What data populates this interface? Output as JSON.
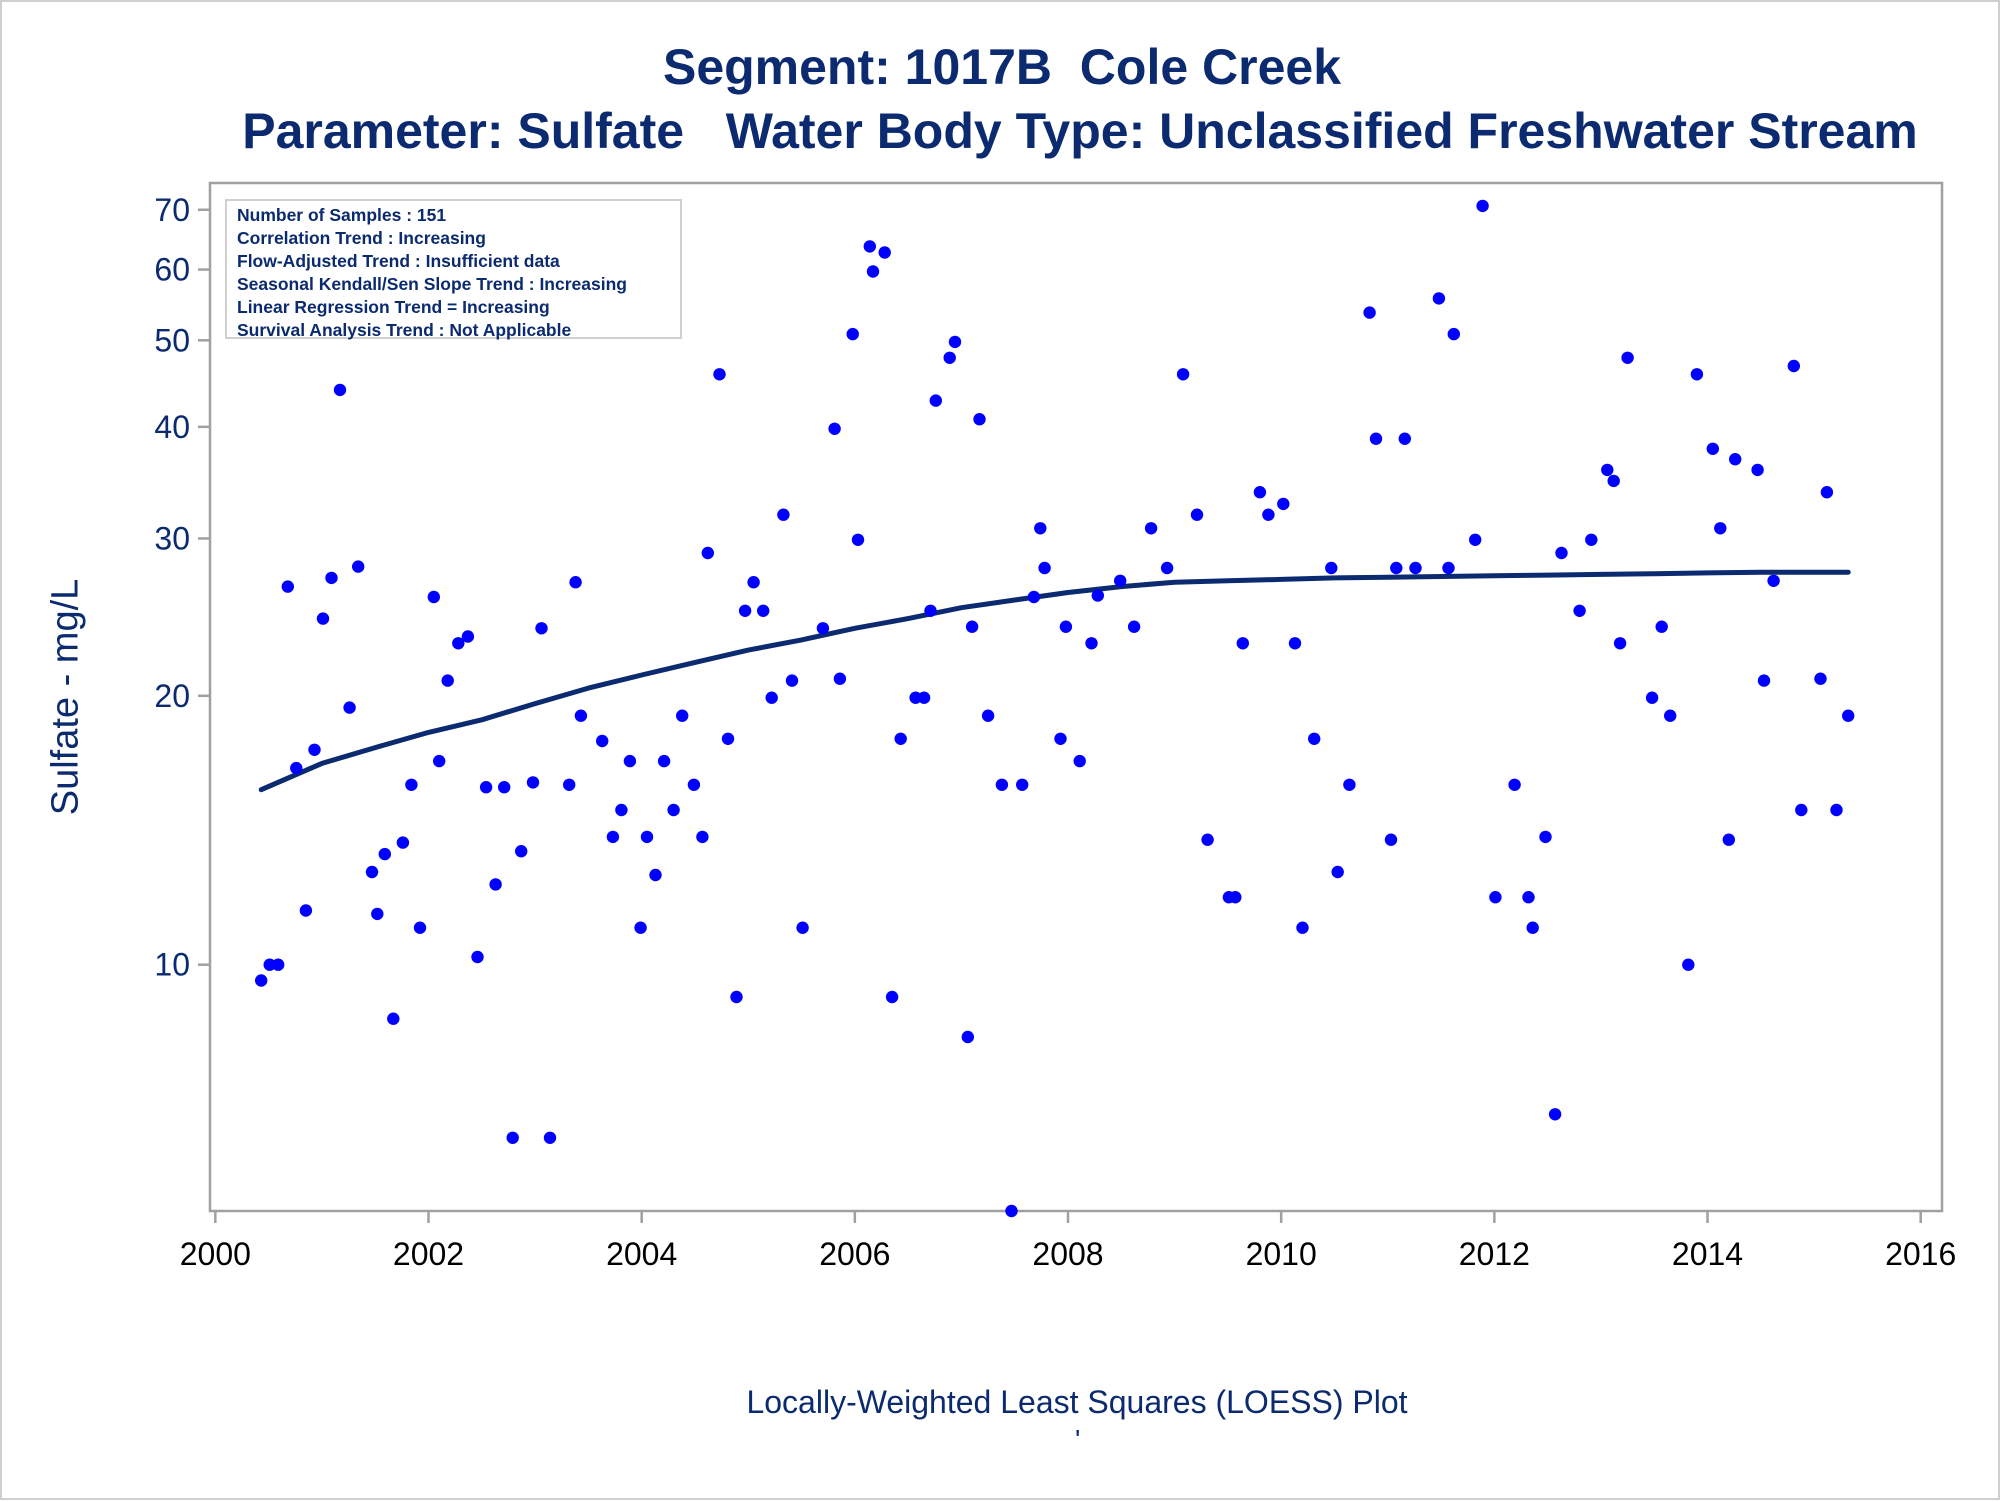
{
  "titles": {
    "line1": "Segment: 1017B  Cole Creek",
    "line2": "Parameter: Sulfate   Water Body Type: Unclassified Freshwater Stream"
  },
  "footnote": "Locally-Weighted Least Squares (LOESS) Plot",
  "footmark": "'",
  "stats": [
    "Number of Samples : 151",
    "Correlation Trend : Increasing",
    "Flow-Adjusted Trend : Insufficient data",
    "Seasonal Kendall/Sen Slope Trend : Increasing",
    "Linear Regression Trend = Increasing",
    "Survival Analysis Trend : Not Applicable"
  ],
  "colors": {
    "text": "#0b2a6f",
    "points": "#0000ff",
    "loess": "#0b2a6f",
    "frame": "#a0a0a0"
  },
  "chart_data": {
    "type": "scatter",
    "title": "Segment: 1017B  Cole Creek",
    "subtitle": "Parameter: Sulfate   Water Body Type: Unclassified Freshwater Stream",
    "xlabel": "",
    "ylabel": "Sulfate - mg/L",
    "yscale": "log",
    "xlim": [
      1999.95,
      2016.2
    ],
    "ylim": [
      5.3,
      75
    ],
    "xticks": [
      2000,
      2002,
      2004,
      2006,
      2008,
      2010,
      2012,
      2014,
      2016
    ],
    "yticks": [
      10,
      20,
      30,
      40,
      50,
      60,
      70
    ],
    "grid": false,
    "points": [
      [
        2000.43,
        9.6
      ],
      [
        2000.51,
        10.0
      ],
      [
        2000.59,
        10.0
      ],
      [
        2000.68,
        26.5
      ],
      [
        2000.76,
        16.6
      ],
      [
        2000.85,
        11.5
      ],
      [
        2000.93,
        17.4
      ],
      [
        2001.01,
        24.4
      ],
      [
        2001.09,
        27.1
      ],
      [
        2001.17,
        44.0
      ],
      [
        2001.26,
        19.4
      ],
      [
        2001.34,
        27.9
      ],
      [
        2001.47,
        12.7
      ],
      [
        2001.52,
        11.4
      ],
      [
        2001.59,
        13.3
      ],
      [
        2001.67,
        8.7
      ],
      [
        2001.76,
        13.7
      ],
      [
        2001.84,
        15.9
      ],
      [
        2001.92,
        11.0
      ],
      [
        2002.05,
        25.8
      ],
      [
        2002.1,
        16.9
      ],
      [
        2002.18,
        20.8
      ],
      [
        2002.28,
        22.9
      ],
      [
        2002.37,
        23.3
      ],
      [
        2002.46,
        10.2
      ],
      [
        2002.54,
        15.8
      ],
      [
        2002.63,
        12.3
      ],
      [
        2002.71,
        15.8
      ],
      [
        2002.79,
        6.4
      ],
      [
        2002.87,
        13.4
      ],
      [
        2002.98,
        16.0
      ],
      [
        2003.06,
        23.8
      ],
      [
        2003.14,
        6.4
      ],
      [
        2003.32,
        15.9
      ],
      [
        2003.38,
        26.8
      ],
      [
        2003.43,
        19.0
      ],
      [
        2003.63,
        17.8
      ],
      [
        2003.73,
        13.9
      ],
      [
        2003.81,
        14.9
      ],
      [
        2003.89,
        16.9
      ],
      [
        2003.99,
        11.0
      ],
      [
        2004.05,
        13.9
      ],
      [
        2004.13,
        12.6
      ],
      [
        2004.21,
        16.9
      ],
      [
        2004.3,
        14.9
      ],
      [
        2004.38,
        19.0
      ],
      [
        2004.49,
        15.9
      ],
      [
        2004.57,
        13.9
      ],
      [
        2004.62,
        28.9
      ],
      [
        2004.73,
        45.8
      ],
      [
        2004.81,
        17.9
      ],
      [
        2004.89,
        9.2
      ],
      [
        2004.97,
        24.9
      ],
      [
        2005.05,
        26.8
      ],
      [
        2005.14,
        24.9
      ],
      [
        2005.22,
        19.9
      ],
      [
        2005.33,
        31.9
      ],
      [
        2005.41,
        20.8
      ],
      [
        2005.51,
        11.0
      ],
      [
        2005.7,
        23.8
      ],
      [
        2005.81,
        39.8
      ],
      [
        2005.86,
        20.9
      ],
      [
        2005.98,
        50.8
      ],
      [
        2006.03,
        29.9
      ],
      [
        2006.14,
        63.7
      ],
      [
        2006.17,
        59.7
      ],
      [
        2006.28,
        62.7
      ],
      [
        2006.35,
        9.2
      ],
      [
        2006.43,
        17.9
      ],
      [
        2006.57,
        19.9
      ],
      [
        2006.65,
        19.9
      ],
      [
        2006.71,
        24.9
      ],
      [
        2006.76,
        42.8
      ],
      [
        2006.89,
        47.8
      ],
      [
        2006.94,
        49.8
      ],
      [
        2007.06,
        8.3
      ],
      [
        2007.1,
        23.9
      ],
      [
        2007.17,
        40.8
      ],
      [
        2007.25,
        19.0
      ],
      [
        2007.38,
        15.9
      ],
      [
        2007.47,
        5.3
      ],
      [
        2007.57,
        15.9
      ],
      [
        2007.68,
        25.8
      ],
      [
        2007.74,
        30.8
      ],
      [
        2007.78,
        27.8
      ],
      [
        2007.93,
        17.9
      ],
      [
        2007.98,
        23.9
      ],
      [
        2008.11,
        16.9
      ],
      [
        2008.22,
        22.9
      ],
      [
        2008.28,
        25.9
      ],
      [
        2008.49,
        26.9
      ],
      [
        2008.62,
        23.9
      ],
      [
        2008.78,
        30.8
      ],
      [
        2008.93,
        27.8
      ],
      [
        2009.08,
        45.8
      ],
      [
        2009.21,
        31.9
      ],
      [
        2009.31,
        13.8
      ],
      [
        2009.51,
        11.9
      ],
      [
        2009.57,
        11.9
      ],
      [
        2009.64,
        22.9
      ],
      [
        2009.8,
        33.8
      ],
      [
        2009.88,
        31.9
      ],
      [
        2010.02,
        32.8
      ],
      [
        2010.13,
        22.9
      ],
      [
        2010.2,
        11.0
      ],
      [
        2010.31,
        17.9
      ],
      [
        2010.47,
        27.8
      ],
      [
        2010.53,
        12.7
      ],
      [
        2010.64,
        15.9
      ],
      [
        2010.83,
        53.7
      ],
      [
        2010.89,
        38.8
      ],
      [
        2011.03,
        13.8
      ],
      [
        2011.08,
        27.8
      ],
      [
        2011.16,
        38.8
      ],
      [
        2011.26,
        27.8
      ],
      [
        2011.48,
        55.7
      ],
      [
        2011.57,
        27.8
      ],
      [
        2011.62,
        50.8
      ],
      [
        2011.82,
        29.9
      ],
      [
        2011.89,
        70.7
      ],
      [
        2012.01,
        11.9
      ],
      [
        2012.19,
        15.9
      ],
      [
        2012.32,
        11.9
      ],
      [
        2012.36,
        11.0
      ],
      [
        2012.48,
        13.9
      ],
      [
        2012.57,
        6.8
      ],
      [
        2012.63,
        28.9
      ],
      [
        2012.8,
        24.9
      ],
      [
        2012.91,
        29.9
      ],
      [
        2013.06,
        35.8
      ],
      [
        2013.12,
        34.8
      ],
      [
        2013.18,
        22.9
      ],
      [
        2013.25,
        47.8
      ],
      [
        2013.48,
        19.9
      ],
      [
        2013.57,
        23.9
      ],
      [
        2013.65,
        19.0
      ],
      [
        2013.82,
        10.0
      ],
      [
        2013.9,
        45.8
      ],
      [
        2014.05,
        37.8
      ],
      [
        2014.12,
        30.8
      ],
      [
        2014.2,
        13.8
      ],
      [
        2014.26,
        36.8
      ],
      [
        2014.47,
        35.8
      ],
      [
        2014.53,
        20.8
      ],
      [
        2014.62,
        26.9
      ],
      [
        2014.81,
        46.8
      ],
      [
        2014.88,
        14.9
      ],
      [
        2015.06,
        20.9
      ],
      [
        2015.12,
        33.8
      ],
      [
        2015.21,
        14.9
      ],
      [
        2015.32,
        19.0
      ]
    ],
    "loess": [
      [
        2000.43,
        15.7
      ],
      [
        2001.0,
        16.8
      ],
      [
        2001.5,
        17.5
      ],
      [
        2002.0,
        18.2
      ],
      [
        2002.5,
        18.8
      ],
      [
        2003.0,
        19.6
      ],
      [
        2003.5,
        20.4
      ],
      [
        2004.0,
        21.1
      ],
      [
        2004.5,
        21.8
      ],
      [
        2005.0,
        22.5
      ],
      [
        2005.5,
        23.1
      ],
      [
        2006.0,
        23.8
      ],
      [
        2006.5,
        24.4
      ],
      [
        2007.0,
        25.1
      ],
      [
        2007.5,
        25.6
      ],
      [
        2008.0,
        26.1
      ],
      [
        2008.5,
        26.5
      ],
      [
        2009.0,
        26.8
      ],
      [
        2009.5,
        26.9
      ],
      [
        2010.0,
        27.0
      ],
      [
        2010.5,
        27.1
      ],
      [
        2011.0,
        27.15
      ],
      [
        2011.5,
        27.2
      ],
      [
        2012.0,
        27.25
      ],
      [
        2012.5,
        27.3
      ],
      [
        2013.0,
        27.35
      ],
      [
        2013.5,
        27.4
      ],
      [
        2014.0,
        27.45
      ],
      [
        2014.5,
        27.5
      ],
      [
        2015.32,
        27.5
      ]
    ]
  }
}
